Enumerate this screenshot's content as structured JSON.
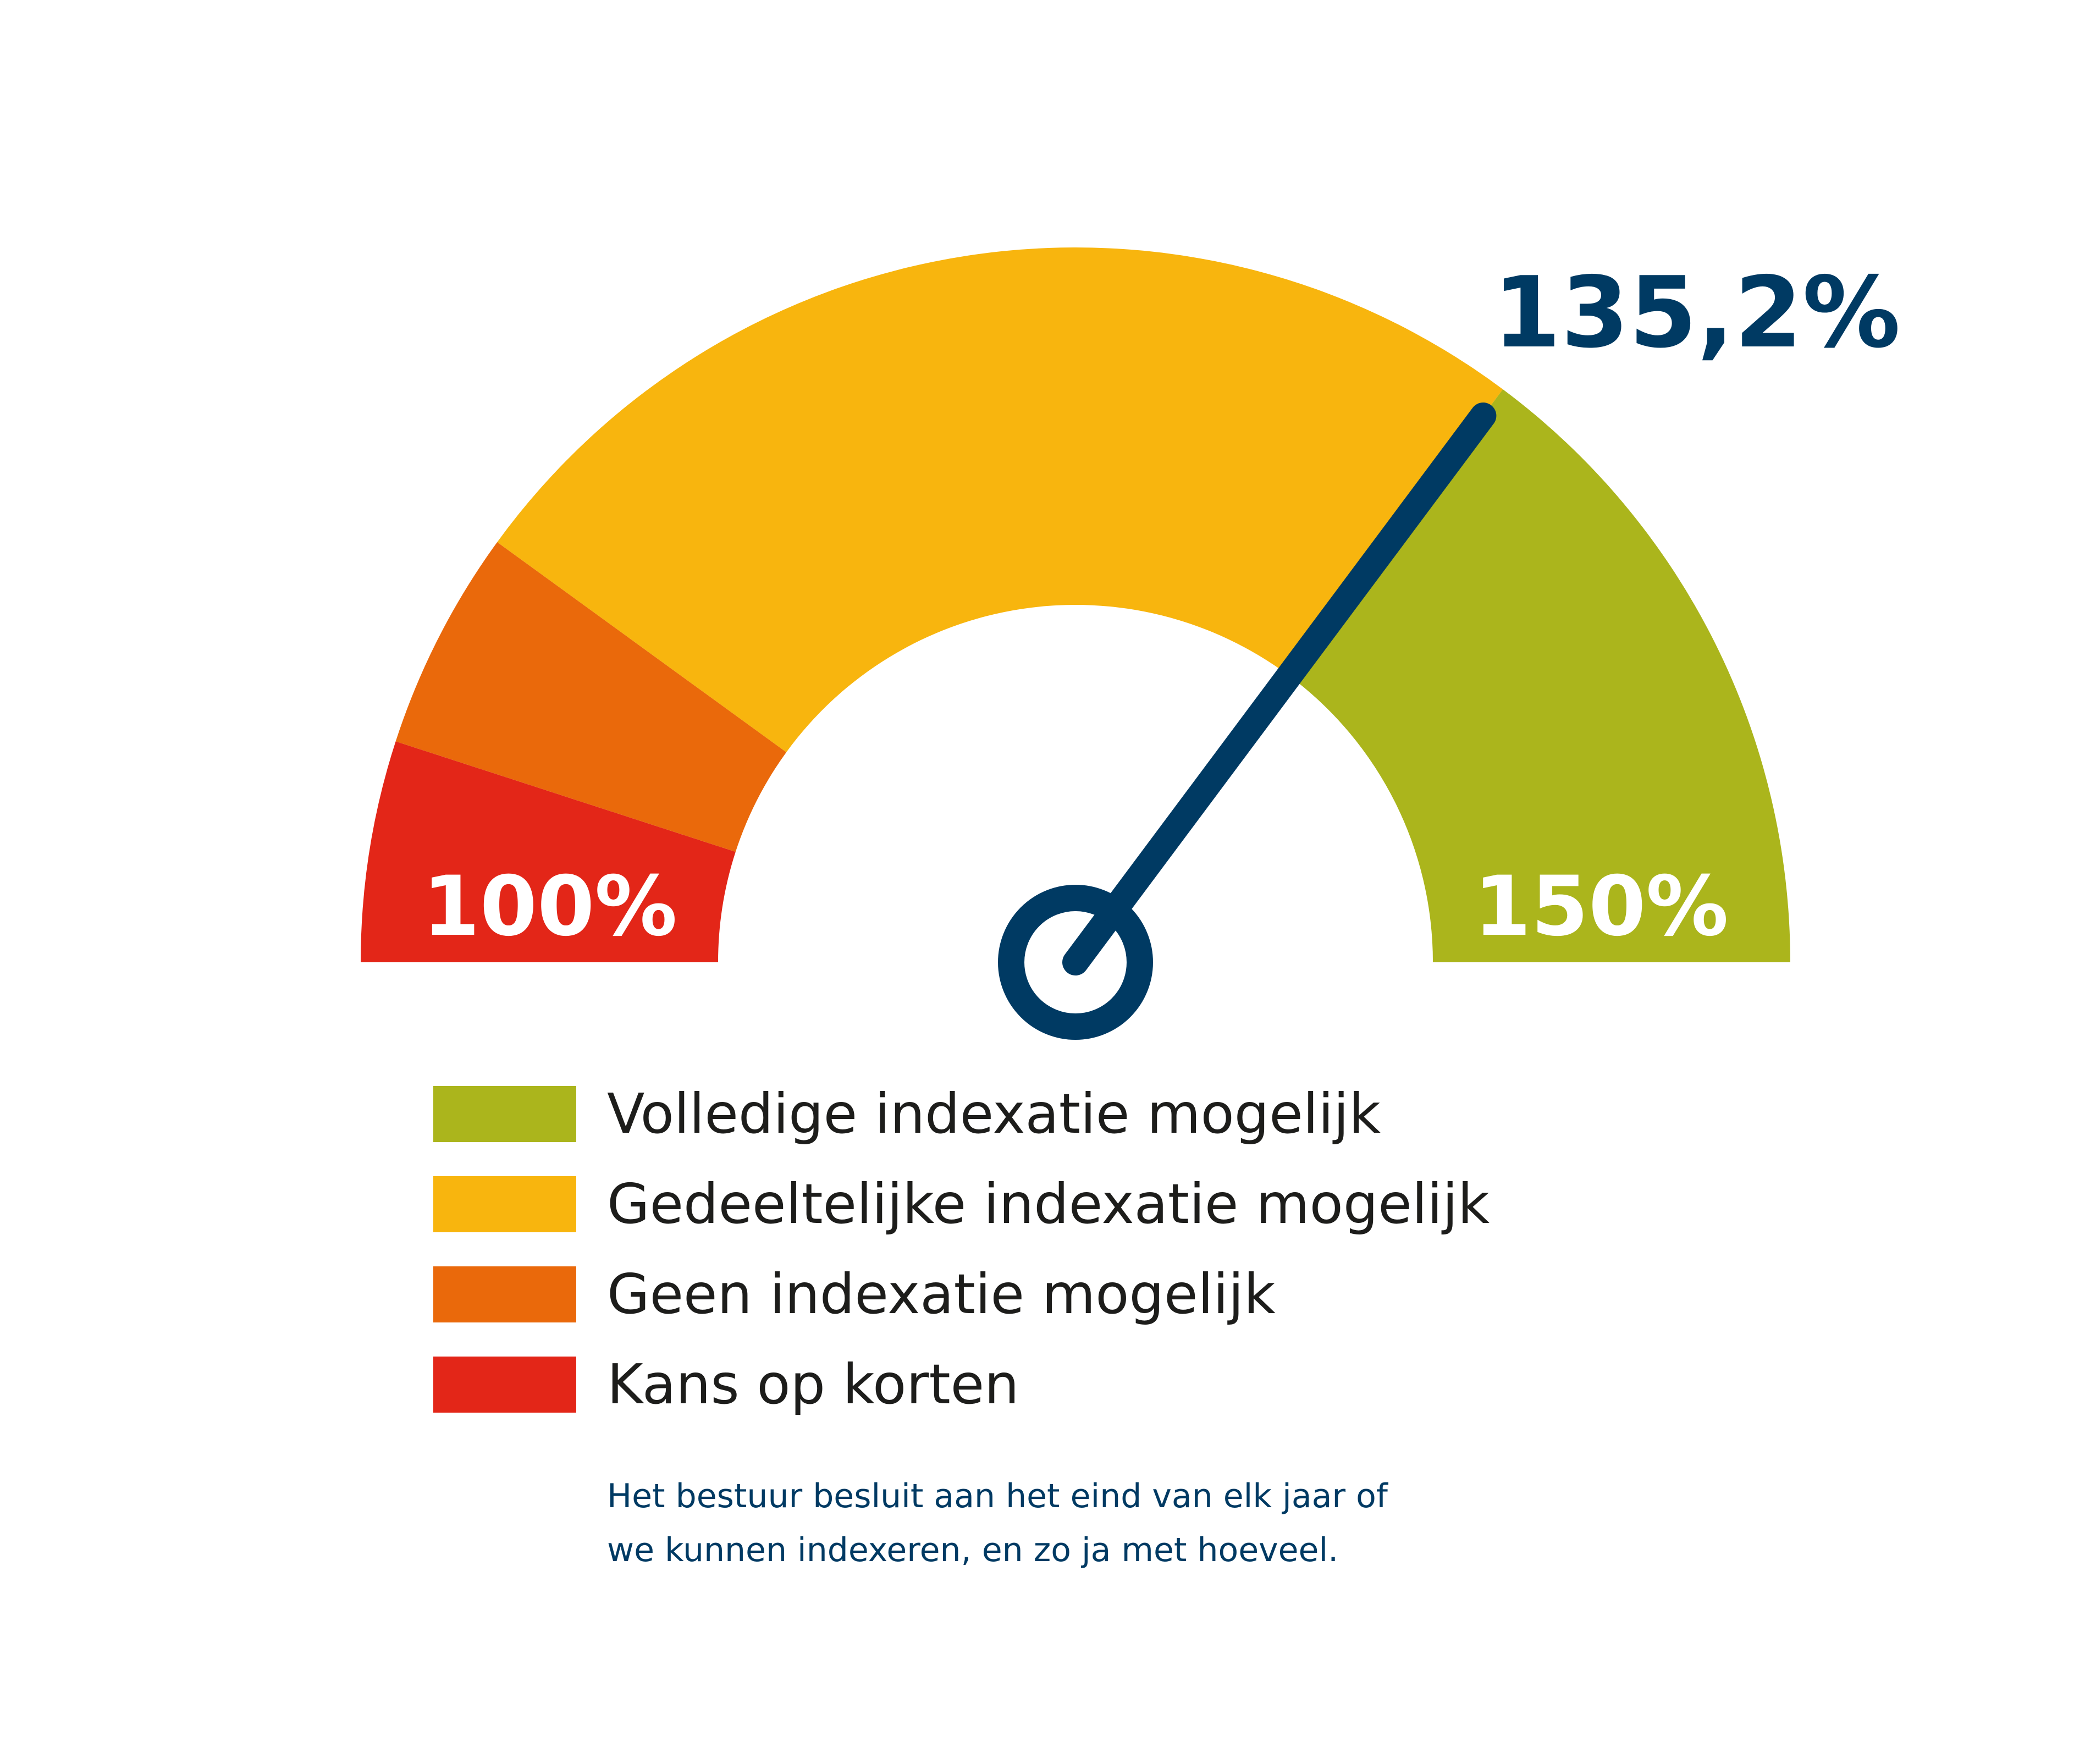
{
  "chart_data": {
    "type": "gauge",
    "min": 100,
    "max": 150,
    "value": 135.2,
    "value_label": "135,2%",
    "min_label": "100%",
    "max_label": "150%",
    "bands": [
      {
        "name": "Kans op korten",
        "from": 100,
        "to": 105,
        "color": "#e32618"
      },
      {
        "name": "Geen indexatie mogelijk",
        "from": 105,
        "to": 110,
        "color": "#ea690b"
      },
      {
        "name": "Gedeeltelijke indexatie mogelijk",
        "from": 110,
        "to": 135.2,
        "color": "#f8b50e"
      },
      {
        "name": "Volledige indexatie mogelijk",
        "from": 135.2,
        "to": 150,
        "color": "#abb51c"
      }
    ],
    "needle_color": "#003a63"
  },
  "legend": [
    {
      "label": "Volledige indexatie mogelijk",
      "color": "#abb51c"
    },
    {
      "label": "Gedeeltelijke indexatie mogelijk",
      "color": "#f8b50e"
    },
    {
      "label": "Geen indexatie mogelijk",
      "color": "#ea690b"
    },
    {
      "label": "Kans op korten",
      "color": "#e32618"
    }
  ],
  "note": {
    "line1": "Het bestuur besluit aan het eind van elk jaar of",
    "line2": "we kunnen indexeren, en zo ja met hoeveel."
  }
}
